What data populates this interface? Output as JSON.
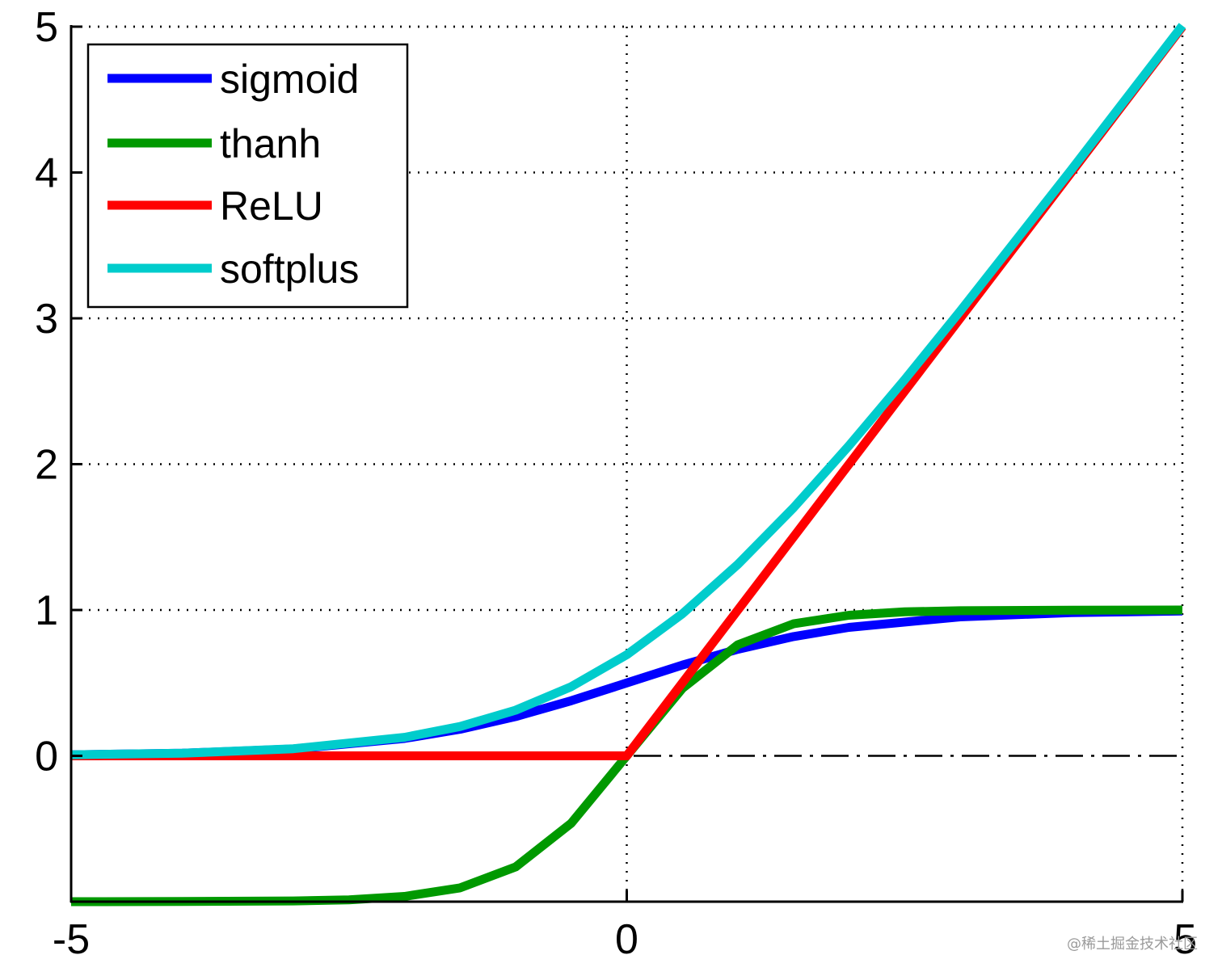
{
  "chart_data": {
    "type": "line",
    "xlim": [
      -5,
      5
    ],
    "ylim": [
      -1,
      5
    ],
    "xticks": [
      -5,
      0,
      5
    ],
    "yticks": [
      0,
      1,
      2,
      3,
      4,
      5
    ],
    "x_tick_labels": [
      "-5",
      "0",
      "5"
    ],
    "y_tick_labels": [
      "0",
      "1",
      "2",
      "3",
      "4",
      "5"
    ],
    "grid": "dotted",
    "legend_position": "top-left",
    "reference_line": {
      "y": 0,
      "style": "dash-dot",
      "color": "#000000"
    },
    "series": [
      {
        "name": "sigmoid",
        "color": "#0000ff",
        "x": [
          -5,
          -4,
          -3,
          -2,
          -1.5,
          -1,
          -0.5,
          0,
          0.5,
          1,
          1.5,
          2,
          3,
          4,
          5
        ],
        "y": [
          0.007,
          0.018,
          0.047,
          0.119,
          0.182,
          0.269,
          0.378,
          0.5,
          0.622,
          0.731,
          0.818,
          0.881,
          0.953,
          0.982,
          0.993
        ]
      },
      {
        "name": "thanh",
        "color": "#009900",
        "x": [
          -5,
          -4,
          -3,
          -2.5,
          -2,
          -1.5,
          -1,
          -0.5,
          0,
          0.5,
          1,
          1.5,
          2,
          2.5,
          3,
          4,
          5
        ],
        "y": [
          -1.0,
          -0.999,
          -0.995,
          -0.987,
          -0.964,
          -0.905,
          -0.762,
          -0.462,
          0,
          0.462,
          0.762,
          0.905,
          0.964,
          0.987,
          0.995,
          0.999,
          1.0
        ]
      },
      {
        "name": "ReLU",
        "color": "#ff0000",
        "x": [
          -5,
          0,
          5
        ],
        "y": [
          0,
          0,
          5
        ]
      },
      {
        "name": "softplus",
        "color": "#00cccc",
        "x": [
          -5,
          -4,
          -3,
          -2,
          -1.5,
          -1,
          -0.5,
          0,
          0.5,
          1,
          1.5,
          2,
          2.5,
          3,
          4,
          5
        ],
        "y": [
          0.007,
          0.018,
          0.049,
          0.127,
          0.201,
          0.313,
          0.474,
          0.693,
          0.974,
          1.313,
          1.701,
          2.127,
          2.579,
          3.049,
          4.018,
          5.007
        ]
      }
    ]
  },
  "watermark": "@稀土掘金技术社区"
}
